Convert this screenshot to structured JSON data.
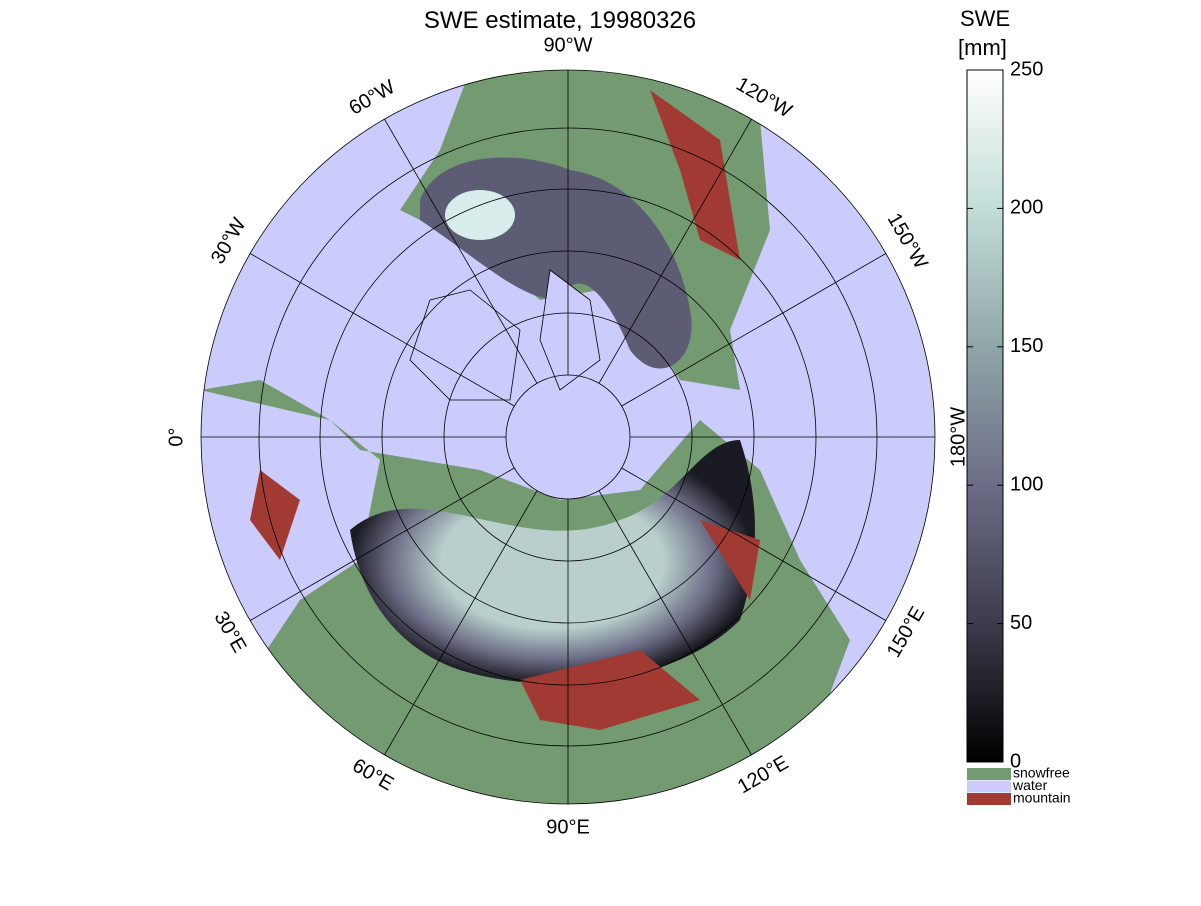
{
  "title": "SWE estimate, 19980326",
  "longitude_labels": [
    "0°",
    "30°E",
    "60°E",
    "90°E",
    "120°E",
    "150°E",
    "180°W",
    "150°W",
    "120°W",
    "90°W",
    "60°W",
    "30°W"
  ],
  "colorbar": {
    "label": [
      "SWE",
      "[mm]"
    ],
    "ylim": [
      0,
      250
    ],
    "yticks": [
      0,
      50,
      100,
      150,
      200,
      250
    ],
    "colormap": [
      "#000000",
      "#3c3c4c",
      "#6c6c86",
      "#8fa6a8",
      "#c2ddd8",
      "#ffffff"
    ]
  },
  "legend": [
    {
      "label": "snowfree",
      "color": "#749a72"
    },
    {
      "label": "water",
      "color": "#ccccfc"
    },
    {
      "label": "mountain",
      "color": "#a23a34"
    }
  ]
}
